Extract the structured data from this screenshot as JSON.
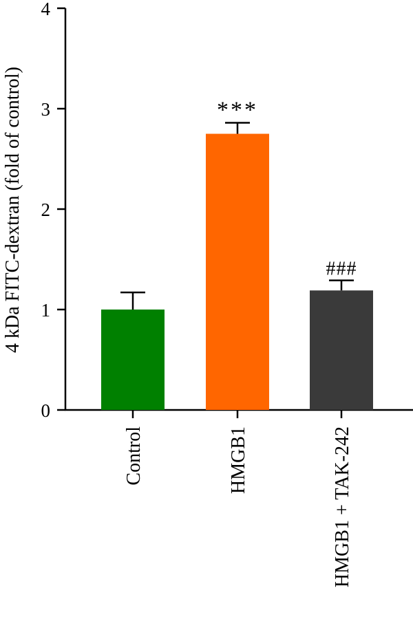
{
  "chart_data": {
    "type": "bar",
    "title": "",
    "xlabel": "",
    "ylabel": "4 kDa FITC-dextran (fold of control)",
    "ylim": [
      0,
      4
    ],
    "yticks": [
      0,
      1,
      2,
      3,
      4
    ],
    "grid": false,
    "categories": [
      "Control",
      "HMGB1",
      "HMGB1 + TAK-242"
    ],
    "values": [
      1.0,
      2.75,
      1.19
    ],
    "errors": [
      0.17,
      0.11,
      0.1
    ],
    "annotations": [
      "",
      "***",
      "###"
    ],
    "colors": [
      "#008000",
      "#ff6600",
      "#3a3a3a"
    ]
  }
}
